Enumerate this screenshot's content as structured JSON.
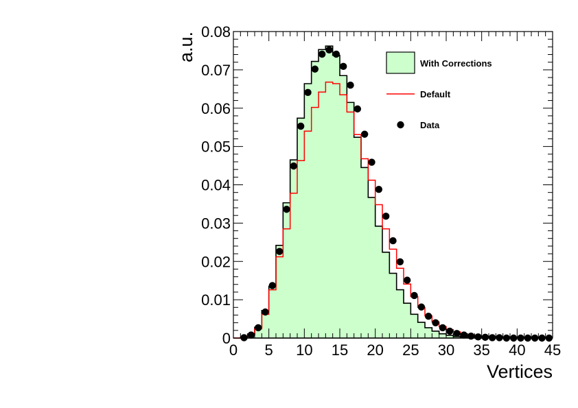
{
  "chart_data": {
    "type": "histogram",
    "xlabel": "Vertices",
    "ylabel": "a.u.",
    "xlim": [
      0,
      45
    ],
    "ylim": [
      0,
      0.08
    ],
    "bin_width": 1,
    "x_ticks": [
      0,
      5,
      10,
      15,
      20,
      25,
      30,
      35,
      40,
      45
    ],
    "x_tick_labels": [
      "0",
      "5",
      "10",
      "15",
      "20",
      "25",
      "30",
      "35",
      "40",
      "45"
    ],
    "y_ticks": [
      0,
      0.01,
      0.02,
      0.03,
      0.04,
      0.05,
      0.06,
      0.07,
      0.08
    ],
    "y_tick_labels": [
      "0",
      "0.01",
      "0.02",
      "0.03",
      "0.04",
      "0.05",
      "0.06",
      "0.07",
      "0.08"
    ],
    "legend_position": "top-right",
    "grid": false,
    "series": [
      {
        "name": "With Corrections",
        "style": "filled-histogram",
        "fill": "#ccffcc",
        "stroke": "#000000",
        "values": [
          0,
          0.0002,
          0.0009,
          0.0028,
          0.0072,
          0.0135,
          0.0242,
          0.0353,
          0.0465,
          0.0574,
          0.0664,
          0.0722,
          0.0753,
          0.0762,
          0.0738,
          0.0685,
          0.0615,
          0.0524,
          0.0445,
          0.0367,
          0.0292,
          0.0224,
          0.0169,
          0.0126,
          0.0091,
          0.0062,
          0.0041,
          0.0027,
          0.0018,
          0.0011,
          0.0007,
          0.0004,
          0.0002,
          0.0001,
          5e-05,
          3e-05,
          2e-05,
          1e-05,
          0,
          0,
          0,
          0,
          0,
          0,
          0
        ]
      },
      {
        "name": "Default",
        "style": "step-line",
        "stroke": "#ff0000",
        "values": [
          0,
          0.0002,
          0.0008,
          0.0024,
          0.0062,
          0.0126,
          0.0212,
          0.0285,
          0.0378,
          0.0463,
          0.054,
          0.0602,
          0.0642,
          0.0668,
          0.0664,
          0.0635,
          0.059,
          0.0531,
          0.0468,
          0.0412,
          0.0348,
          0.0285,
          0.0232,
          0.0182,
          0.0141,
          0.0108,
          0.008,
          0.0058,
          0.0042,
          0.003,
          0.0022,
          0.0016,
          0.0011,
          0.0008,
          0.0005,
          0.0003,
          0.0002,
          0.0001,
          6e-05,
          3e-05,
          2e-05,
          1e-05,
          0,
          0,
          0
        ]
      },
      {
        "name": "Data",
        "style": "markers",
        "color": "#000000",
        "x": [
          1.5,
          2.5,
          3.5,
          4.5,
          5.5,
          6.5,
          7.5,
          8.5,
          9.5,
          10.5,
          11.5,
          12.5,
          13.5,
          14.5,
          15.5,
          16.5,
          17.5,
          18.5,
          19.5,
          20.5,
          21.5,
          22.5,
          23.5,
          24.5,
          25.5,
          26.5,
          27.5,
          28.5,
          29.5,
          30.5,
          31.5,
          32.5,
          33.5,
          34.5,
          35.5,
          36.5,
          37.5,
          38.5,
          39.5,
          40.5,
          41.5,
          42.5,
          43.5,
          44.5
        ],
        "y": [
          0.0001,
          0.0008,
          0.0027,
          0.0068,
          0.0137,
          0.0226,
          0.0336,
          0.0449,
          0.0553,
          0.0641,
          0.0702,
          0.0741,
          0.0752,
          0.0741,
          0.0709,
          0.066,
          0.0598,
          0.0532,
          0.0459,
          0.0388,
          0.0318,
          0.0254,
          0.0199,
          0.0151,
          0.0111,
          0.0081,
          0.0057,
          0.004,
          0.0027,
          0.0018,
          0.0012,
          0.0008,
          0.0005,
          0.0003,
          0.0002,
          0.0001,
          0.0001,
          0,
          0,
          0,
          0,
          0,
          0,
          0
        ]
      }
    ]
  }
}
